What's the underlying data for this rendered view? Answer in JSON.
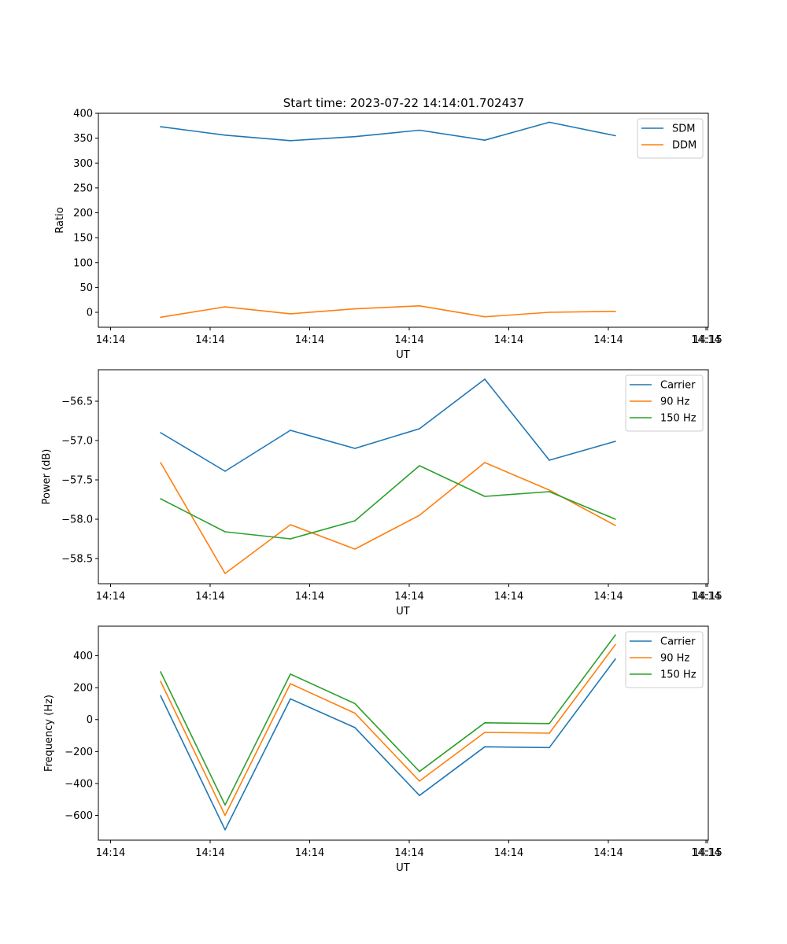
{
  "title": "Start time: 2023-07-22 14:14:01.702437",
  "colors": {
    "blue": "#1f77b4",
    "orange": "#ff7f0e",
    "green": "#2ca02c"
  },
  "chart_data": [
    {
      "type": "line",
      "xlabel": "UT",
      "ylabel": "Ratio",
      "x_ticks": [
        "14:14",
        "14:14",
        "14:14",
        "14:14",
        "14:14",
        "14:14",
        "14:14",
        "14:15"
      ],
      "y_ticks": [
        0,
        50,
        100,
        150,
        200,
        250,
        300,
        350,
        400
      ],
      "ylim": [
        -30,
        400
      ],
      "legend_position": "upper right",
      "series": [
        {
          "name": "SDM",
          "color": "#1f77b4",
          "values": [
            373,
            356,
            345,
            353,
            366,
            346,
            382,
            355
          ]
        },
        {
          "name": "DDM",
          "color": "#ff7f0e",
          "values": [
            -10,
            11,
            -3,
            7,
            13,
            -9,
            0,
            2
          ]
        }
      ]
    },
    {
      "type": "line",
      "xlabel": "UT",
      "ylabel": "Power (dB)",
      "x_ticks": [
        "14:14",
        "14:14",
        "14:14",
        "14:14",
        "14:14",
        "14:14",
        "14:14",
        "14:15"
      ],
      "y_ticks": [
        -58.5,
        -58.0,
        -57.5,
        -57.0,
        -56.5
      ],
      "y_tick_labels": [
        "−58.5",
        "−58.0",
        "−57.5",
        "−57.0",
        "−56.5"
      ],
      "ylim": [
        -58.82,
        -56.1
      ],
      "legend_position": "upper right",
      "series": [
        {
          "name": "Carrier",
          "color": "#1f77b4",
          "values": [
            -56.9,
            -57.39,
            -56.87,
            -57.1,
            -56.85,
            -56.22,
            -57.25,
            -57.01
          ]
        },
        {
          "name": "90 Hz",
          "color": "#ff7f0e",
          "values": [
            -57.28,
            -58.69,
            -58.07,
            -58.38,
            -57.95,
            -57.28,
            -57.63,
            -58.08
          ]
        },
        {
          "name": "150 Hz",
          "color": "#2ca02c",
          "values": [
            -57.74,
            -58.16,
            -58.25,
            -58.02,
            -57.32,
            -57.71,
            -57.65,
            -58.0
          ]
        }
      ]
    },
    {
      "type": "line",
      "xlabel": "UT",
      "ylabel": "Frequency (Hz)",
      "x_ticks": [
        "14:14",
        "14:14",
        "14:14",
        "14:14",
        "14:14",
        "14:14",
        "14:14",
        "14:15"
      ],
      "y_ticks": [
        -600,
        -400,
        -200,
        0,
        200,
        400
      ],
      "y_tick_labels": [
        "−600",
        "−400",
        "−200",
        "0",
        "200",
        "400"
      ],
      "ylim": [
        -755,
        585
      ],
      "legend_position": "upper right",
      "series": [
        {
          "name": "Carrier",
          "color": "#1f77b4",
          "values": [
            150,
            -690,
            130,
            -50,
            -475,
            -170,
            -175,
            380
          ]
        },
        {
          "name": "90 Hz",
          "color": "#ff7f0e",
          "values": [
            240,
            -600,
            225,
            40,
            -385,
            -80,
            -85,
            470
          ]
        },
        {
          "name": "150 Hz",
          "color": "#2ca02c",
          "values": [
            300,
            -535,
            285,
            100,
            -325,
            -20,
            -25,
            530
          ]
        }
      ]
    }
  ]
}
